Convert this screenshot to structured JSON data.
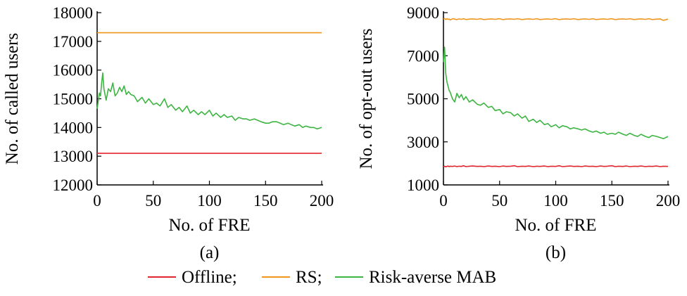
{
  "chart_data": [
    {
      "type": "line",
      "panel_label": "(a)",
      "xlabel": "No. of FRE",
      "ylabel": "No. of called users",
      "xlim": [
        0,
        200
      ],
      "ylim": [
        12000,
        18000
      ],
      "xticks": [
        0,
        50,
        100,
        150,
        200
      ],
      "yticks": [
        12000,
        13000,
        14000,
        15000,
        16000,
        17000,
        18000
      ],
      "x": [
        0,
        2,
        3,
        4,
        5,
        6,
        8,
        10,
        12,
        14,
        16,
        18,
        20,
        22,
        24,
        26,
        28,
        30,
        33,
        36,
        40,
        43,
        46,
        50,
        53,
        56,
        60,
        63,
        66,
        70,
        73,
        76,
        80,
        83,
        86,
        90,
        93,
        96,
        100,
        103,
        106,
        110,
        113,
        116,
        120,
        123,
        126,
        130,
        133,
        136,
        140,
        143,
        146,
        150,
        153,
        156,
        160,
        163,
        166,
        170,
        173,
        176,
        180,
        183,
        186,
        190,
        193,
        196,
        200
      ],
      "series": [
        {
          "name": "Offline",
          "color": "#e0262f",
          "values": [
            13100,
            13100,
            13100,
            13100,
            13100,
            13100,
            13100,
            13100,
            13100,
            13100,
            13100,
            13100,
            13100,
            13100,
            13100,
            13100,
            13100,
            13100,
            13100,
            13100,
            13100,
            13100,
            13100,
            13100,
            13100,
            13100,
            13100,
            13100,
            13100,
            13100,
            13100,
            13100,
            13100,
            13100,
            13100,
            13100,
            13100,
            13100,
            13100,
            13100,
            13100,
            13100,
            13100,
            13100,
            13100,
            13100,
            13100,
            13100,
            13100,
            13100,
            13100,
            13100,
            13100,
            13100,
            13100,
            13100,
            13100,
            13100,
            13100,
            13100,
            13100,
            13100,
            13100,
            13100,
            13100,
            13100,
            13100,
            13100,
            13100
          ]
        },
        {
          "name": "RS",
          "color": "#f0961e",
          "values": [
            17300,
            17300,
            17300,
            17300,
            17300,
            17300,
            17300,
            17300,
            17300,
            17300,
            17300,
            17300,
            17300,
            17300,
            17300,
            17300,
            17300,
            17300,
            17300,
            17300,
            17300,
            17300,
            17300,
            17300,
            17300,
            17300,
            17300,
            17300,
            17300,
            17300,
            17300,
            17300,
            17300,
            17300,
            17300,
            17300,
            17300,
            17300,
            17300,
            17300,
            17300,
            17300,
            17300,
            17300,
            17300,
            17300,
            17300,
            17300,
            17300,
            17300,
            17300,
            17300,
            17300,
            17300,
            17300,
            17300,
            17300,
            17300,
            17300,
            17300,
            17300,
            17300,
            17300,
            17300,
            17300,
            17300,
            17300,
            17300,
            17300
          ]
        },
        {
          "name": "Risk-averse MAB",
          "color": "#3db542",
          "values": [
            14650,
            15200,
            15100,
            15550,
            15900,
            15350,
            14950,
            15350,
            15250,
            15550,
            15100,
            15200,
            15400,
            15250,
            15450,
            15150,
            15250,
            15150,
            15100,
            14900,
            15050,
            14850,
            15000,
            14800,
            14850,
            14750,
            15000,
            14700,
            14800,
            14600,
            14700,
            14550,
            14750,
            14500,
            14600,
            14450,
            14550,
            14450,
            14600,
            14400,
            14500,
            14350,
            14450,
            14350,
            14400,
            14250,
            14350,
            14300,
            14300,
            14250,
            14300,
            14250,
            14200,
            14150,
            14150,
            14200,
            14200,
            14150,
            14100,
            14150,
            14100,
            14050,
            14100,
            14000,
            14050,
            14000,
            14000,
            13950,
            14000
          ]
        }
      ]
    },
    {
      "type": "line",
      "panel_label": "(b)",
      "xlabel": "No. of FRE",
      "ylabel": "No. of opt-out users",
      "xlim": [
        0,
        200
      ],
      "ylim": [
        1000,
        9000
      ],
      "xticks": [
        0,
        50,
        100,
        150,
        200
      ],
      "yticks": [
        1000,
        3000,
        5000,
        7000,
        9000
      ],
      "x": [
        0,
        1,
        2,
        3,
        4,
        5,
        6,
        8,
        10,
        12,
        14,
        16,
        18,
        20,
        23,
        26,
        30,
        33,
        36,
        40,
        43,
        46,
        50,
        53,
        56,
        60,
        63,
        66,
        70,
        73,
        76,
        80,
        83,
        86,
        90,
        93,
        96,
        100,
        103,
        106,
        110,
        113,
        116,
        120,
        123,
        126,
        130,
        133,
        136,
        140,
        143,
        146,
        150,
        153,
        156,
        160,
        163,
        166,
        170,
        173,
        176,
        180,
        183,
        186,
        190,
        193,
        196,
        200
      ],
      "series": [
        {
          "name": "Offline",
          "color": "#e0262f",
          "values": [
            1850,
            1870,
            1840,
            1860,
            1880,
            1850,
            1870,
            1860,
            1880,
            1850,
            1870,
            1860,
            1890,
            1850,
            1870,
            1880,
            1860,
            1870,
            1850,
            1880,
            1860,
            1870,
            1850,
            1880,
            1860,
            1870,
            1890,
            1850,
            1870,
            1860,
            1880,
            1850,
            1870,
            1860,
            1880,
            1850,
            1870,
            1860,
            1890,
            1850,
            1870,
            1880,
            1860,
            1870,
            1850,
            1880,
            1860,
            1870,
            1850,
            1880,
            1860,
            1870,
            1890,
            1850,
            1870,
            1860,
            1880,
            1850,
            1870,
            1860,
            1880,
            1850,
            1870,
            1860,
            1880,
            1850,
            1870,
            1860
          ]
        },
        {
          "name": "RS",
          "color": "#f0961e",
          "values": [
            8700,
            8730,
            8680,
            8720,
            8690,
            8700,
            8660,
            8720,
            8700,
            8680,
            8710,
            8690,
            8720,
            8680,
            8700,
            8710,
            8690,
            8720,
            8680,
            8700,
            8710,
            8690,
            8720,
            8680,
            8700,
            8710,
            8690,
            8720,
            8680,
            8700,
            8710,
            8690,
            8720,
            8680,
            8700,
            8710,
            8690,
            8720,
            8680,
            8700,
            8710,
            8690,
            8720,
            8680,
            8700,
            8710,
            8690,
            8720,
            8680,
            8700,
            8710,
            8690,
            8720,
            8680,
            8700,
            8710,
            8690,
            8720,
            8680,
            8700,
            8710,
            8690,
            8720,
            8680,
            8700,
            8710,
            8640,
            8700
          ]
        },
        {
          "name": "Risk-averse MAB",
          "color": "#3db542",
          "values": [
            6700,
            7400,
            6200,
            5800,
            5600,
            5400,
            5300,
            5000,
            4850,
            5250,
            5050,
            5200,
            4950,
            5100,
            4850,
            4950,
            4750,
            4700,
            4800,
            4600,
            4650,
            4450,
            4500,
            4300,
            4400,
            4350,
            4200,
            4300,
            4100,
            4200,
            3950,
            4050,
            3900,
            4000,
            3800,
            3850,
            3700,
            3800,
            3650,
            3750,
            3700,
            3600,
            3650,
            3600,
            3550,
            3600,
            3500,
            3450,
            3500,
            3400,
            3450,
            3350,
            3400,
            3350,
            3450,
            3350,
            3300,
            3400,
            3300,
            3250,
            3350,
            3250,
            3200,
            3300,
            3250,
            3200,
            3150,
            3250
          ]
        }
      ]
    }
  ],
  "legend": {
    "position": "bottom-center",
    "items": [
      {
        "label": "Offline;",
        "color": "#e0262f"
      },
      {
        "label": "RS;",
        "color": "#f0961e"
      },
      {
        "label": "Risk-averse MAB",
        "color": "#3db542"
      }
    ]
  }
}
